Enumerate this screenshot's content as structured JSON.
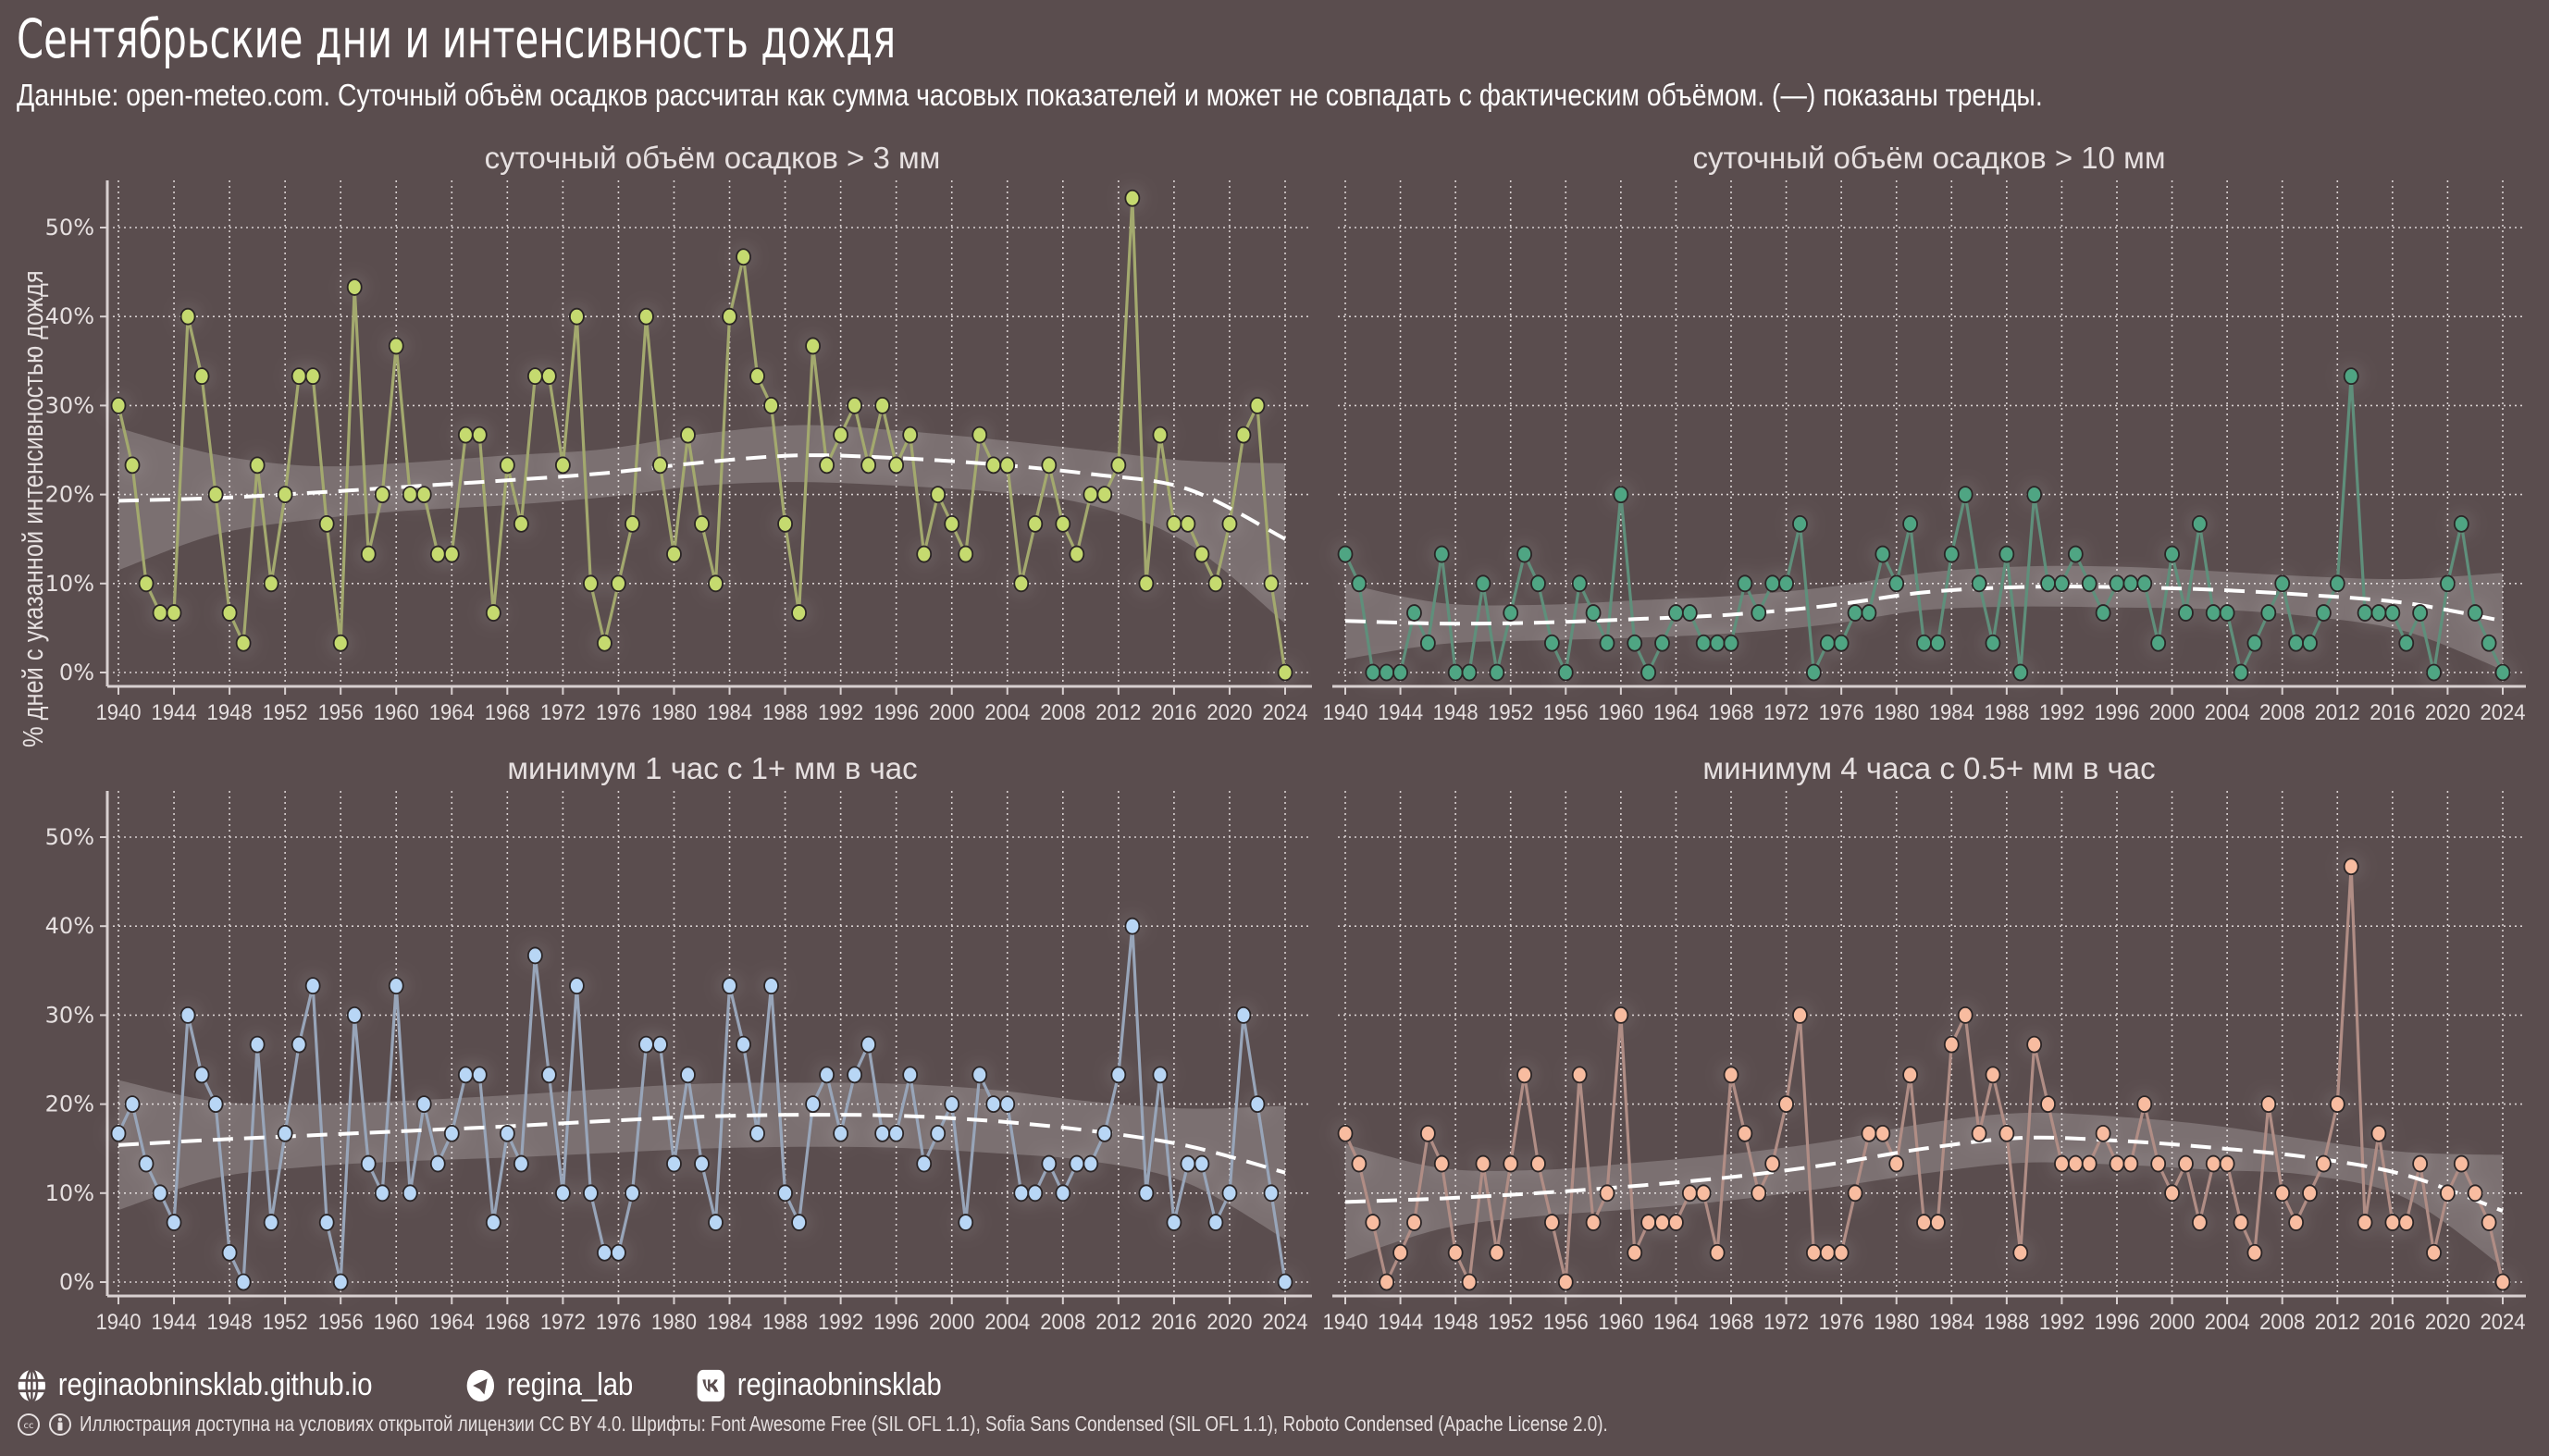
{
  "header": {
    "title": "Сентябрьские дни и интенсивность дождя",
    "subtitle": "Данные: open-meteo.com. Суточный объём осадков рассчитан как сумма часовых показателей и может не совпадать с фактическим объёмом. (—) показаны тренды."
  },
  "footer": {
    "links": [
      {
        "icon": "globe-icon",
        "label": "reginaobninsklab.github.io"
      },
      {
        "icon": "telegram-icon",
        "label": "regina_lab"
      },
      {
        "icon": "vk-icon",
        "label": "reginaobninsklab"
      }
    ],
    "license": "Иллюстрация доступна на условиях открытой лицензии CC BY 4.0.  Шрифты: Font Awesome Free (SIL OFL 1.1), Sofia Sans Condensed (SIL OFL 1.1), Roboto Condensed (Apache License 2.0)."
  },
  "chart_data": {
    "type": "line",
    "ylabel": "% дней с указанной интенсивностью дождя",
    "ylim": [
      0,
      55
    ],
    "yticks": [
      0,
      10,
      20,
      30,
      40,
      50
    ],
    "ytick_labels": [
      "0%",
      "10%",
      "20%",
      "30%",
      "40%",
      "50%"
    ],
    "xlim": [
      1939,
      2025
    ],
    "xticks": [
      1940,
      1944,
      1948,
      1952,
      1956,
      1960,
      1964,
      1968,
      1972,
      1976,
      1980,
      1984,
      1988,
      1992,
      1996,
      2000,
      2004,
      2008,
      2012,
      2016,
      2020,
      2024
    ],
    "x_start": 1940,
    "grid": true,
    "trend_line": "dashed white with grey confidence band",
    "panels": [
      {
        "title": "суточный объём осадков > 3 мм",
        "color": "#c5da6f",
        "line_color": "#a3a96e",
        "values": [
          30,
          23.3,
          10,
          6.7,
          6.7,
          40,
          33.3,
          20,
          6.7,
          3.3,
          23.3,
          10,
          20,
          33.3,
          33.3,
          16.7,
          3.3,
          43.3,
          13.3,
          20,
          36.7,
          20,
          20,
          13.3,
          13.3,
          26.7,
          26.7,
          6.7,
          23.3,
          16.7,
          33.3,
          33.3,
          23.3,
          40,
          10,
          3.3,
          10,
          16.7,
          40,
          23.3,
          13.3,
          26.7,
          16.7,
          10,
          40,
          46.7,
          33.3,
          30,
          16.7,
          6.7,
          36.7,
          23.3,
          26.7,
          30,
          23.3,
          30,
          23.3,
          26.7,
          13.3,
          20,
          16.7,
          13.3,
          26.7,
          23.3,
          23.3,
          10,
          16.7,
          23.3,
          16.7,
          13.3,
          20,
          20,
          23.3,
          53.3,
          10,
          26.7,
          16.7,
          16.7,
          13.3,
          10,
          16.7,
          26.7,
          30,
          10,
          0
        ],
        "trend": [
          19.3,
          19.6,
          20.2,
          20.9,
          21.6,
          22.4,
          23.6,
          24.4,
          24.1,
          23.4,
          22.3,
          20.6,
          15.0
        ],
        "band_upper": [
          27.5,
          24.5,
          23.2,
          23.6,
          24.4,
          25.1,
          26.8,
          27.8,
          27.2,
          26.2,
          25.0,
          23.8,
          23.5
        ],
        "band_lower": [
          11.5,
          15.5,
          17.2,
          18.2,
          18.8,
          19.7,
          21.0,
          21.4,
          21.0,
          20.3,
          18.8,
          14.5,
          5.5
        ]
      },
      {
        "title": "суточный объём осадков > 10 мм",
        "color": "#4fa583",
        "line_color": "#5f8f7b",
        "values": [
          13.3,
          10,
          0,
          0,
          0,
          6.7,
          3.3,
          13.3,
          0,
          0,
          10,
          0,
          6.7,
          13.3,
          10,
          3.3,
          0,
          10,
          6.7,
          3.3,
          20,
          3.3,
          0,
          3.3,
          6.7,
          6.7,
          3.3,
          3.3,
          3.3,
          10,
          6.7,
          10,
          10,
          16.7,
          0,
          3.3,
          3.3,
          6.7,
          6.7,
          13.3,
          10,
          16.7,
          3.3,
          3.3,
          13.3,
          20,
          10,
          3.3,
          13.3,
          0,
          20,
          10,
          10,
          13.3,
          10,
          6.7,
          10,
          10,
          10,
          3.3,
          13.3,
          6.7,
          16.7,
          6.7,
          6.7,
          0,
          3.3,
          6.7,
          10,
          3.3,
          3.3,
          6.7,
          10,
          33.3,
          6.7,
          6.7,
          6.7,
          3.3,
          6.7,
          0,
          10,
          16.7,
          6.7,
          3.3,
          0
        ],
        "trend": [
          5.8,
          5.5,
          5.6,
          6.0,
          6.5,
          7.5,
          9.0,
          9.6,
          9.6,
          9.3,
          8.7,
          7.8,
          5.8
        ],
        "band_upper": [
          10.0,
          7.8,
          7.6,
          8.1,
          8.6,
          9.6,
          11.2,
          11.9,
          11.9,
          11.4,
          10.8,
          10.5,
          11.2
        ],
        "band_lower": [
          1.5,
          3.2,
          3.6,
          3.9,
          4.4,
          5.4,
          7.0,
          7.4,
          7.3,
          7.1,
          6.3,
          4.6,
          0.3
        ]
      },
      {
        "title": "минимум 1 час с 1+ мм в час",
        "color": "#b8d6f5",
        "line_color": "#98a5b9",
        "values": [
          16.7,
          20,
          13.3,
          10,
          6.7,
          30,
          23.3,
          20,
          3.3,
          0,
          26.7,
          6.7,
          16.7,
          26.7,
          33.3,
          6.7,
          0,
          30,
          13.3,
          10,
          33.3,
          10,
          20,
          13.3,
          16.7,
          23.3,
          23.3,
          6.7,
          16.7,
          13.3,
          36.7,
          23.3,
          10,
          33.3,
          10,
          3.3,
          3.3,
          10,
          26.7,
          26.7,
          13.3,
          23.3,
          13.3,
          6.7,
          33.3,
          26.7,
          16.7,
          33.3,
          10,
          6.7,
          20,
          23.3,
          16.7,
          23.3,
          26.7,
          16.7,
          16.7,
          23.3,
          13.3,
          16.7,
          20,
          6.7,
          23.3,
          20,
          20,
          10,
          10,
          13.3,
          10,
          13.3,
          13.3,
          16.7,
          23.3,
          40,
          10,
          23.3,
          6.7,
          13.3,
          13.3,
          6.7,
          10,
          30,
          20,
          10,
          0
        ],
        "trend": [
          15.4,
          16.0,
          16.5,
          17.0,
          17.5,
          18.1,
          18.6,
          18.8,
          18.7,
          18.1,
          17.0,
          15.3,
          12.3
        ],
        "band_upper": [
          22.7,
          20.3,
          20.0,
          20.4,
          21.0,
          21.7,
          22.3,
          22.4,
          22.3,
          21.6,
          20.3,
          19.5,
          19.8
        ],
        "band_lower": [
          8.1,
          11.7,
          13.0,
          13.6,
          14.0,
          14.5,
          15.0,
          15.2,
          15.1,
          14.5,
          13.6,
          11.1,
          4.8
        ]
      },
      {
        "title": "минимум 4 часа с 0.5+ мм в час",
        "color": "#f8bca0",
        "line_color": "#b08d85",
        "values": [
          16.7,
          13.3,
          6.7,
          0,
          3.3,
          6.7,
          16.7,
          13.3,
          3.3,
          0,
          13.3,
          3.3,
          13.3,
          23.3,
          13.3,
          6.7,
          0,
          23.3,
          6.7,
          10,
          30,
          3.3,
          6.7,
          6.7,
          6.7,
          10,
          10,
          3.3,
          23.3,
          16.7,
          10,
          13.3,
          20,
          30,
          3.3,
          3.3,
          3.3,
          10,
          16.7,
          16.7,
          13.3,
          23.3,
          6.7,
          6.7,
          26.7,
          30,
          16.7,
          23.3,
          16.7,
          3.3,
          26.7,
          20,
          13.3,
          13.3,
          13.3,
          16.7,
          13.3,
          13.3,
          20,
          13.3,
          10,
          13.3,
          6.7,
          13.3,
          13.3,
          6.7,
          3.3,
          20,
          10,
          6.7,
          10,
          13.3,
          20,
          46.7,
          6.7,
          16.7,
          6.7,
          6.7,
          13.3,
          3.3,
          10,
          13.3,
          10,
          6.7,
          0
        ],
        "trend": [
          9.0,
          9.4,
          10.0,
          10.8,
          11.8,
          13.2,
          15.0,
          16.2,
          15.9,
          15.1,
          14.0,
          12.0,
          8.0
        ],
        "band_upper": [
          15.5,
          12.8,
          12.6,
          13.4,
          14.4,
          15.8,
          17.8,
          19.0,
          18.6,
          17.6,
          16.0,
          14.6,
          14.3
        ],
        "band_lower": [
          2.5,
          6.0,
          7.4,
          8.2,
          9.2,
          10.6,
          12.2,
          13.4,
          13.2,
          12.6,
          12.0,
          9.4,
          1.7
        ]
      }
    ],
    "trend_years": [
      1940,
      1947,
      1954,
      1961,
      1968,
      1975,
      1982,
      1989,
      1996,
      2003,
      2010,
      2017,
      2024
    ]
  }
}
